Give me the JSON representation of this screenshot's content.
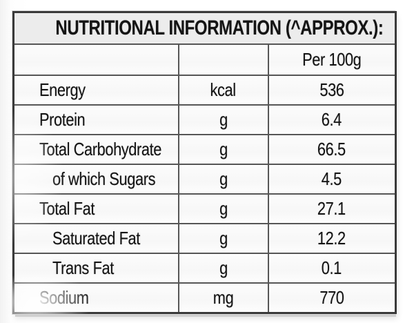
{
  "table": {
    "title": "NUTRITIONAL INFORMATION (^APPROX.):",
    "column_header": "Per 100g",
    "rows": [
      {
        "label": "Energy",
        "unit": "kcal",
        "value": "536",
        "sub": false
      },
      {
        "label": "Protein",
        "unit": "g",
        "value": "6.4",
        "sub": false
      },
      {
        "label": "Total Carbohydrate",
        "unit": "g",
        "value": "66.5",
        "sub": false
      },
      {
        "label": "of which Sugars",
        "unit": "g",
        "value": "4.5",
        "sub": true
      },
      {
        "label": "Total Fat",
        "unit": "g",
        "value": "27.1",
        "sub": false
      },
      {
        "label": "Saturated Fat",
        "unit": "g",
        "value": "12.2",
        "sub": true
      },
      {
        "label": "Trans Fat",
        "unit": "g",
        "value": "0.1",
        "sub": true
      },
      {
        "label": "Sodium",
        "unit": "mg",
        "value": "770",
        "sub": false
      }
    ],
    "colors": {
      "outer_border": "#3a3a3a",
      "inner_border": "#565656",
      "header_bg": "#ececec",
      "cell_bg": "#fbfbfb",
      "text": "#141414"
    }
  }
}
